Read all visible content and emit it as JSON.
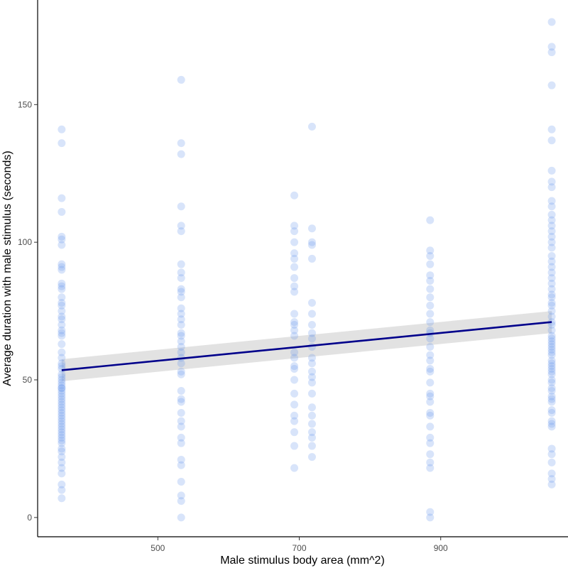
{
  "chart_data": {
    "type": "scatter",
    "title": "",
    "xlabel": "Male stimulus body area (mm^2)",
    "ylabel": "Average duration with male stimulus (seconds)",
    "xlim": [
      330,
      1080
    ],
    "ylim": [
      -7,
      188
    ],
    "x_ticks": [
      500,
      700,
      900
    ],
    "x_tick_labels": [
      "500",
      "700",
      "900"
    ],
    "y_ticks": [
      0,
      50,
      100,
      150
    ],
    "y_tick_labels": [
      "0",
      "50",
      "100",
      "150"
    ],
    "grid": false,
    "legend": "none",
    "point_color": "#6495ED",
    "point_opacity": 0.25,
    "groups": [
      {
        "x": 364,
        "y": [
          141,
          136,
          116,
          111,
          102,
          101,
          99,
          92,
          91,
          90,
          85,
          84,
          83,
          80,
          78,
          77,
          75,
          73,
          72,
          70,
          68,
          67,
          66,
          63,
          60,
          58,
          56,
          55,
          54,
          52,
          51,
          50,
          49,
          48,
          47,
          47,
          46,
          45,
          44,
          43,
          42,
          41,
          40,
          39,
          38,
          37,
          36,
          35,
          34,
          33,
          32,
          31,
          30,
          29,
          28,
          27,
          25,
          24,
          22,
          20,
          18,
          16,
          12,
          10,
          7
        ]
      },
      {
        "x": 533,
        "y": [
          159,
          136,
          132,
          113,
          106,
          104,
          92,
          89,
          87,
          83,
          82,
          80,
          76,
          74,
          72,
          70,
          67,
          66,
          64,
          62,
          60,
          58,
          56,
          53,
          52,
          46,
          43,
          42,
          38,
          35,
          33,
          29,
          27,
          21,
          19,
          13,
          8,
          6,
          0
        ]
      },
      {
        "x": 693,
        "y": [
          117,
          106,
          104,
          100,
          96,
          94,
          91,
          87,
          84,
          82,
          74,
          71,
          70,
          68,
          66,
          60,
          58,
          55,
          54,
          50,
          45,
          41,
          37,
          35,
          31,
          26,
          18
        ]
      },
      {
        "x": 718,
        "y": [
          142,
          105,
          100,
          99,
          94,
          78,
          74,
          70,
          67,
          65,
          62,
          58,
          56,
          53,
          51,
          49,
          45,
          40,
          37,
          34,
          31,
          29,
          26,
          22
        ]
      },
      {
        "x": 885,
        "y": [
          108,
          97,
          95,
          92,
          88,
          86,
          83,
          80,
          77,
          74,
          71,
          68,
          67,
          65,
          62,
          59,
          57,
          54,
          53,
          49,
          45,
          44,
          42,
          38,
          37,
          33,
          29,
          27,
          23,
          20,
          18,
          2,
          0
        ]
      },
      {
        "x": 1057,
        "y": [
          180,
          171,
          169,
          157,
          141,
          137,
          126,
          122,
          120,
          115,
          113,
          110,
          108,
          106,
          104,
          102,
          100,
          98,
          95,
          93,
          91,
          89,
          87,
          85,
          83,
          81,
          80,
          78,
          77,
          75,
          73,
          71,
          70,
          68,
          66,
          65,
          64,
          63,
          62,
          61,
          60,
          59,
          57,
          56,
          55,
          54,
          53,
          52,
          50,
          49,
          47,
          46,
          44,
          43,
          42,
          39,
          38,
          35,
          34,
          33,
          25,
          23,
          20,
          16,
          14,
          12
        ]
      }
    ],
    "trend_line": {
      "x": [
        364,
        1057
      ],
      "y": [
        53.5,
        71.0
      ],
      "color": "#00008B"
    },
    "confidence_band": {
      "x": [
        364,
        1057
      ],
      "lower": [
        49.5,
        67.0
      ],
      "upper": [
        57.5,
        75.0
      ],
      "color": "#BEBEBE"
    }
  }
}
